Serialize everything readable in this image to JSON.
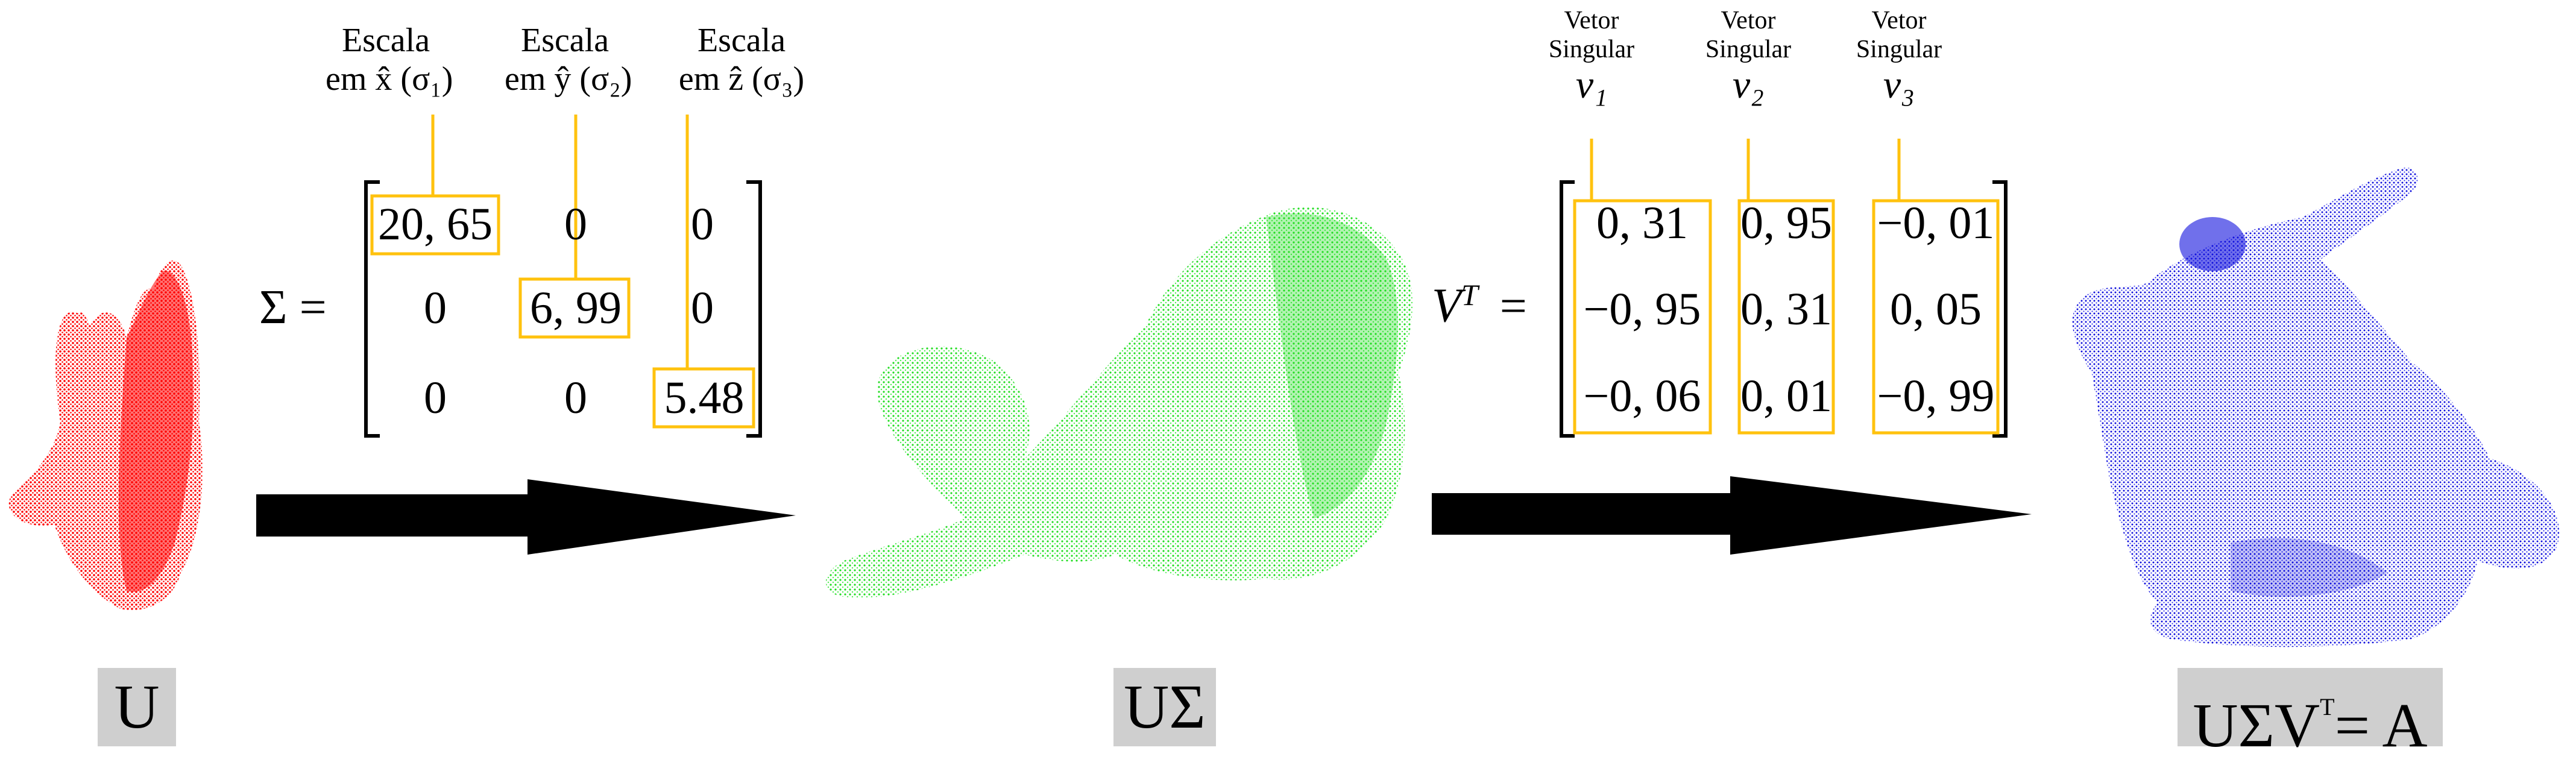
{
  "colors": {
    "highlight": "#FFC20E",
    "bunny_u": "#FF0000",
    "bunny_usigma": "#33EE33",
    "bunny_a": "#1010DD",
    "label_bg": "#CFCFCF",
    "arrow": "#000000"
  },
  "sigma": {
    "lhs": "Σ =",
    "headers": [
      {
        "line1": "Escala",
        "line2": "em x̂ (σ₁)"
      },
      {
        "line1": "Escala",
        "line2": "em ŷ (σ₂)"
      },
      {
        "line1": "Escala",
        "line2": "em ẑ (σ₃)"
      }
    ],
    "rows": [
      [
        "20, 65",
        "0",
        "0"
      ],
      [
        "0",
        "6, 99",
        "0"
      ],
      [
        "0",
        "0",
        "5.48"
      ]
    ]
  },
  "vt": {
    "lhs_base": "V",
    "lhs_sup": "T",
    "lhs_eq": "=",
    "headers": [
      {
        "line1": "Vetor",
        "line2": "Singular",
        "sym": "v₁"
      },
      {
        "line1": "Vetor",
        "line2": "Singular",
        "sym": "v₂"
      },
      {
        "line1": "Vetor",
        "line2": "Singular",
        "sym": "v₃"
      }
    ],
    "rows": [
      [
        "0, 31",
        "0, 95",
        "−0, 01"
      ],
      [
        "−0, 95",
        "0, 31",
        "0, 05"
      ],
      [
        "−0, 06",
        "0, 01",
        "−0, 99"
      ]
    ]
  },
  "labels": {
    "u": "U",
    "usigma": "UΣ",
    "a_part1": "UΣV",
    "a_sup": "T",
    "a_part2": "= A"
  }
}
